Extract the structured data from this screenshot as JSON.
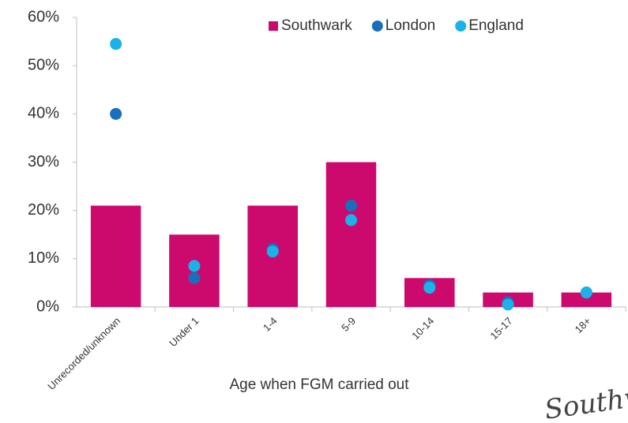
{
  "chart_data": {
    "type": "bar",
    "x_label": "Age when FGM carried out",
    "categories": [
      "Unrecorded/unknown",
      "Under 1",
      "1-4",
      "5-9",
      "10-14",
      "15-17",
      "18+"
    ],
    "series": [
      {
        "name": "Southwark",
        "type": "bar",
        "color": "#cc0a6e",
        "values": [
          21,
          15,
          21,
          30,
          6,
          3,
          3
        ]
      },
      {
        "name": "London",
        "type": "scatter",
        "color": "#1a6fbc",
        "values": [
          40,
          6,
          12,
          21,
          4.5,
          1,
          3
        ]
      },
      {
        "name": "England",
        "type": "scatter",
        "color": "#1ab2e8",
        "values": [
          54.5,
          8.5,
          11.5,
          18,
          4,
          0.5,
          3
        ]
      }
    ],
    "ylim": [
      0,
      60
    ],
    "yticks": [
      {
        "value": 0,
        "label": "0%"
      },
      {
        "value": 10,
        "label": "10%"
      },
      {
        "value": 20,
        "label": "20%"
      },
      {
        "value": 30,
        "label": "30%"
      },
      {
        "value": 40,
        "label": "40%"
      },
      {
        "value": 50,
        "label": "50%"
      },
      {
        "value": 60,
        "label": "60%"
      }
    ],
    "grid": false,
    "legend": "top-right",
    "logo_text": "Southw"
  }
}
